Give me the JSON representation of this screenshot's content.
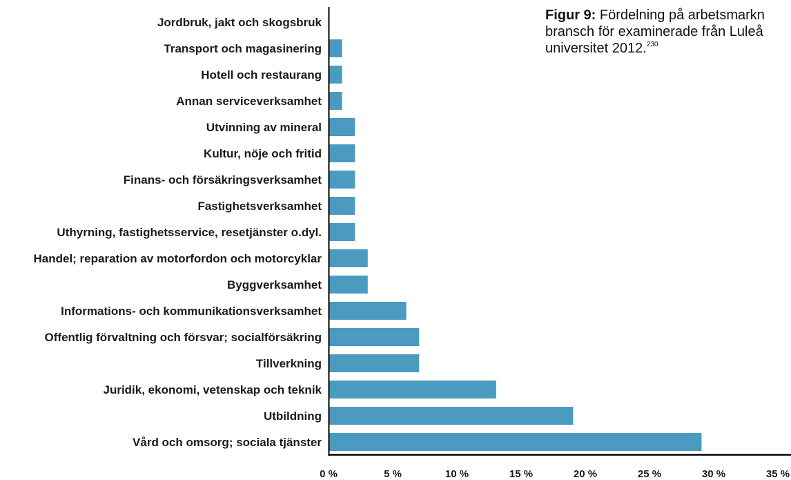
{
  "caption": {
    "label": "Figur 9:",
    "lines": [
      "Fördelning på arbetsmarkn",
      "bransch för examinerade från Luleå",
      "universitet 2012."
    ],
    "footnote_ref": "230"
  },
  "chart_data": {
    "type": "bar",
    "orientation": "horizontal",
    "categories": [
      "Jordbruk, jakt och skogsbruk",
      "Transport och magasinering",
      "Hotell och restaurang",
      "Annan serviceverksamhet",
      "Utvinning av mineral",
      "Kultur, nöje och fritid",
      "Finans- och försäkringsverksamhet",
      "Fastighetsverksamhet",
      "Uthyrning, fastighetsservice, resetjänster o.dyl.",
      "Handel; reparation av motorfordon och motorcyklar",
      "Byggverksamhet",
      "Informations- och kommunikationsverksamhet",
      "Offentlig förvaltning och försvar; socialförsäkring",
      "Tillverkning",
      "Juridik, ekonomi, vetenskap och teknik",
      "Utbildning",
      "Vård och omsorg; sociala tjänster"
    ],
    "values": [
      0,
      1,
      1,
      1,
      2,
      2,
      2,
      2,
      2,
      3,
      3,
      6,
      7,
      7,
      13,
      19,
      29
    ],
    "xlim": [
      0,
      35
    ],
    "x_ticks": [
      0,
      5,
      10,
      15,
      20,
      25,
      30,
      35
    ],
    "x_tick_labels": [
      "0 %",
      "5 %",
      "10 %",
      "15 %",
      "20 %",
      "25 %",
      "30 %",
      "35 %"
    ],
    "grid": false,
    "bar_color": "#4a9bbf",
    "axis_color": "#000000"
  }
}
